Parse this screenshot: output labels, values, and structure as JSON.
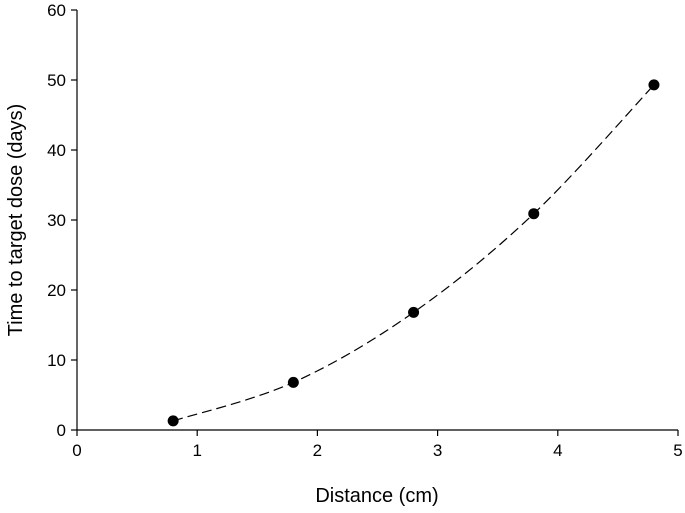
{
  "chart_data": {
    "type": "line",
    "title": "",
    "xlabel": "Distance (cm)",
    "ylabel": "Time to target dose (days)",
    "xlim": [
      0,
      5
    ],
    "ylim": [
      0,
      60
    ],
    "xticks": [
      0,
      1,
      2,
      3,
      4,
      5
    ],
    "yticks": [
      0,
      10,
      20,
      30,
      40,
      50,
      60
    ],
    "grid": false,
    "line_style": "dashed",
    "marker": "filled-circle",
    "colors": {
      "line": "#000000",
      "marker": "#000000"
    },
    "series": [
      {
        "x": [
          0.8,
          1.8,
          2.8,
          3.8,
          4.8
        ],
        "y": [
          1.3,
          6.8,
          16.8,
          30.9,
          49.3
        ]
      }
    ]
  }
}
